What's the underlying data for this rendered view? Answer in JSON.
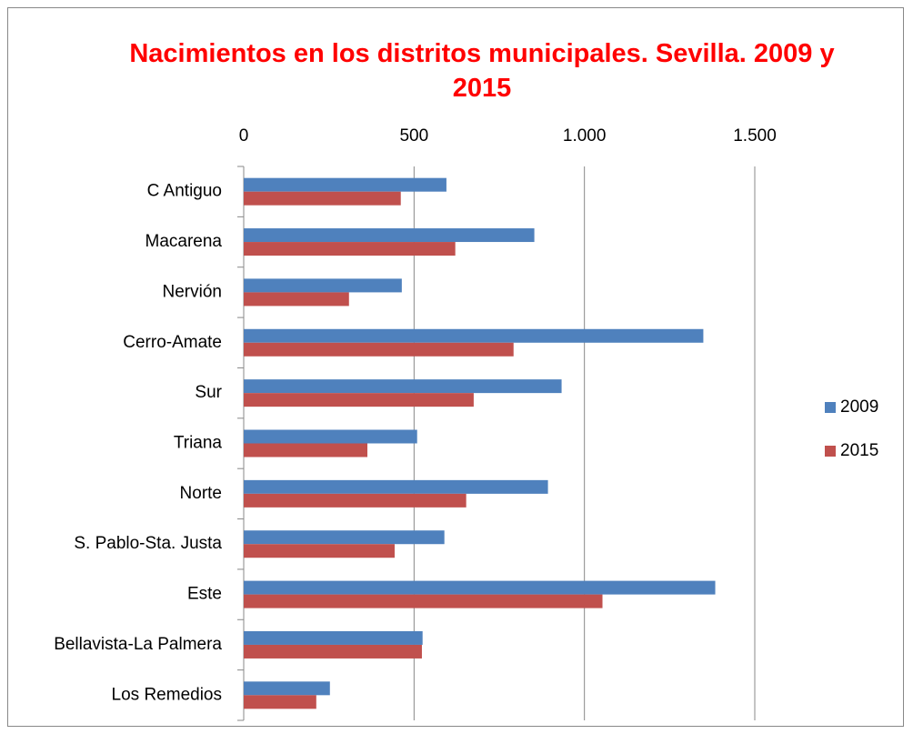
{
  "chart_data": {
    "type": "bar",
    "orientation": "horizontal",
    "title": "Nacimientos en los distritos municipales. Sevilla. 2009 y 2015",
    "categories": [
      "C Antiguo",
      "Macarena",
      "Nervión",
      "Cerro-Amate",
      "Sur",
      "Triana",
      "Norte",
      "S. Pablo-Sta. Justa",
      "Este",
      "Bellavista-La Palmera",
      "Los Remedios"
    ],
    "series": [
      {
        "name": "2009",
        "color": "#4f81bd",
        "values": [
          595,
          853,
          464,
          1349,
          933,
          509,
          893,
          589,
          1384,
          525,
          253
        ]
      },
      {
        "name": "2015",
        "color": "#c0504d",
        "values": [
          461,
          621,
          309,
          792,
          675,
          363,
          653,
          443,
          1053,
          523,
          213
        ]
      }
    ],
    "xlim": [
      0,
      1500
    ],
    "xticks": [
      0,
      500,
      {
        "value": 1000,
        "label": "1.000"
      },
      {
        "value": 1500,
        "label": "1.500"
      }
    ],
    "grid": true,
    "legend": "right"
  }
}
